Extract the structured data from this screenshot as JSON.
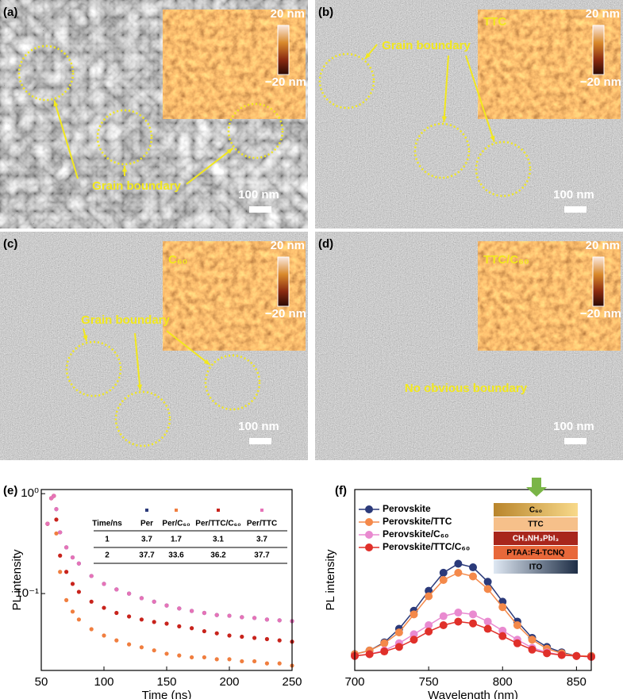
{
  "panels": [
    {
      "label": "(a)",
      "scale_top": "20 nm",
      "scale_bottom": "−20 nm",
      "annotation": "Grain boundary",
      "scale_bar": "100 nm"
    },
    {
      "label": "(b)",
      "sample": "TTC",
      "scale_top": "20 nm",
      "scale_bottom": "−20 nm",
      "annotation": "Grain boundary",
      "scale_bar": "100 nm"
    },
    {
      "label": "(c)",
      "sample": "C₆₀",
      "scale_top": "20 nm",
      "scale_bottom": "−20 nm",
      "annotation": "Grain boundary",
      "scale_bar": "100 nm"
    },
    {
      "label": "(d)",
      "sample": "TTC/C₆₀",
      "scale_top": "20 nm",
      "scale_bottom": "−20 nm",
      "annotation": "No obvious boundary",
      "scale_bar": "100 nm"
    }
  ],
  "chart_data": [
    {
      "type": "scatter",
      "label": "(e)",
      "x_label": "Time (ns)",
      "y_label": "PL intensity",
      "log_y": true,
      "xlim": [
        50,
        250
      ],
      "xticks": [
        50,
        100,
        150,
        200,
        250
      ],
      "ylim": [
        0.017,
        1.1
      ],
      "yticks": [
        {
          "value": 1,
          "label": "10⁰"
        },
        {
          "value": 0.1,
          "label": "10⁻¹"
        }
      ],
      "x": [
        55,
        58,
        60,
        62,
        65,
        70,
        75,
        80,
        90,
        100,
        110,
        120,
        130,
        140,
        150,
        160,
        170,
        180,
        190,
        200,
        210,
        220,
        230,
        240,
        250
      ],
      "series": [
        {
          "name": "Per",
          "color": "#2b3a7a",
          "values": [
            0.5,
            0.9,
            0.95,
            0.7,
            0.41,
            0.29,
            0.23,
            0.2,
            0.15,
            0.125,
            0.11,
            0.1,
            0.09,
            0.083,
            0.076,
            0.071,
            0.067,
            0.064,
            0.061,
            0.06,
            0.058,
            0.057,
            0.055,
            0.054,
            0.053
          ]
        },
        {
          "name": "Per/C₆₀",
          "color": "#f07e3f",
          "values": [
            0.5,
            0.9,
            0.95,
            0.4,
            0.165,
            0.086,
            0.066,
            0.055,
            0.044,
            0.038,
            0.034,
            0.031,
            0.029,
            0.027,
            0.025,
            0.024,
            0.023,
            0.023,
            0.022,
            0.022,
            0.021,
            0.021,
            0.02,
            0.02,
            0.019
          ]
        },
        {
          "name": "Per/TTC/C₆₀",
          "color": "#c8231c",
          "values": [
            0.5,
            0.9,
            0.95,
            0.55,
            0.24,
            0.165,
            0.125,
            0.104,
            0.083,
            0.072,
            0.064,
            0.059,
            0.055,
            0.052,
            0.05,
            0.047,
            0.045,
            0.042,
            0.04,
            0.038,
            0.037,
            0.036,
            0.035,
            0.034,
            0.033
          ]
        },
        {
          "name": "Per/TTC",
          "color": "#e673b8",
          "values": [
            0.5,
            0.9,
            0.95,
            0.7,
            0.41,
            0.29,
            0.23,
            0.2,
            0.15,
            0.125,
            0.11,
            0.1,
            0.09,
            0.083,
            0.076,
            0.071,
            0.067,
            0.064,
            0.061,
            0.06,
            0.058,
            0.057,
            0.055,
            0.054,
            0.053
          ]
        }
      ],
      "table": {
        "header": [
          "Time/ns",
          "Per",
          "Per/C₆₀",
          "Per/TTC/C₆₀",
          "Per/TTC"
        ],
        "rows": [
          [
            "1",
            "3.7",
            "1.7",
            "3.1",
            "3.7"
          ],
          [
            "2",
            "37.7",
            "33.6",
            "36.2",
            "37.7"
          ]
        ]
      }
    },
    {
      "type": "line",
      "label": "(f)",
      "x_label": "Wavelength (nm)",
      "y_label": "PL intensity",
      "xlim": [
        700,
        860
      ],
      "xticks": [
        700,
        750,
        800,
        850
      ],
      "ylim": [
        0,
        1
      ],
      "x": [
        700,
        710,
        720,
        730,
        740,
        750,
        760,
        770,
        780,
        790,
        800,
        810,
        820,
        830,
        840,
        850,
        860
      ],
      "series": [
        {
          "name": "Perovskite",
          "color": "#2b3a7a",
          "values": [
            0.09,
            0.11,
            0.155,
            0.23,
            0.33,
            0.44,
            0.54,
            0.59,
            0.57,
            0.49,
            0.38,
            0.27,
            0.18,
            0.13,
            0.1,
            0.08,
            0.08
          ]
        },
        {
          "name": "Perovskite/TTC",
          "color": "#f4894a",
          "values": [
            0.09,
            0.11,
            0.15,
            0.21,
            0.31,
            0.41,
            0.5,
            0.54,
            0.52,
            0.45,
            0.35,
            0.25,
            0.17,
            0.12,
            0.095,
            0.08,
            0.08
          ]
        },
        {
          "name": "Perovskite/C₆₀",
          "color": "#e98ad0",
          "values": [
            0.08,
            0.09,
            0.11,
            0.15,
            0.2,
            0.25,
            0.3,
            0.32,
            0.31,
            0.27,
            0.22,
            0.17,
            0.125,
            0.1,
            0.085,
            0.08,
            0.075
          ]
        },
        {
          "name": "Perovskite/TTC/C₆₀",
          "color": "#e0302a",
          "values": [
            0.08,
            0.09,
            0.105,
            0.13,
            0.17,
            0.215,
            0.25,
            0.27,
            0.26,
            0.23,
            0.19,
            0.15,
            0.115,
            0.095,
            0.085,
            0.08,
            0.075
          ]
        }
      ],
      "inset_layers": [
        "C₆₀",
        "TTC",
        "CH₃NH₃PbI₃",
        "PTAA:F4-TCNQ",
        "ITO"
      ]
    }
  ]
}
